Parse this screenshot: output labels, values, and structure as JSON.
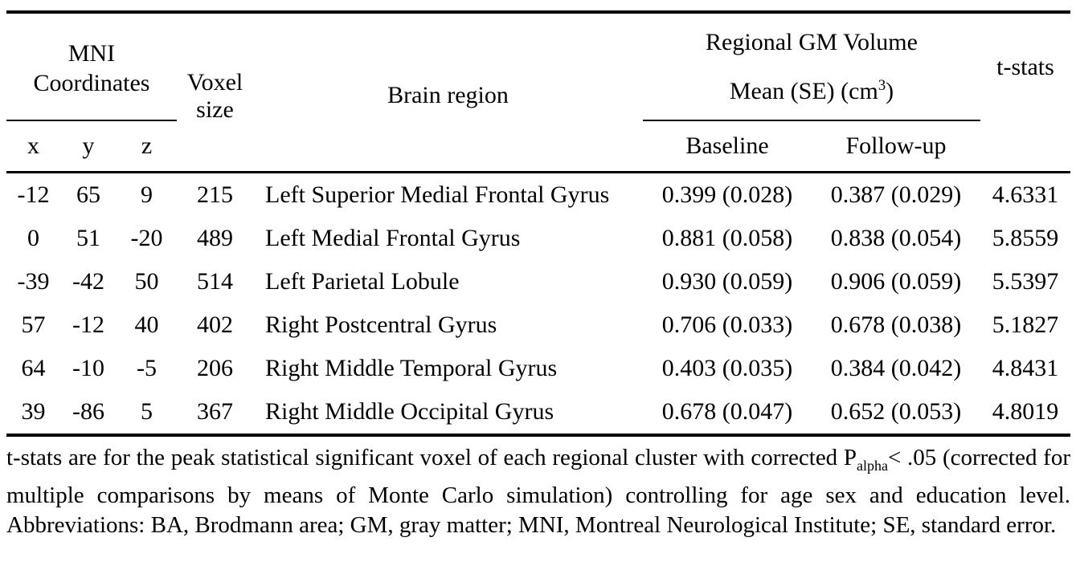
{
  "table": {
    "header": {
      "mni_line1": "MNI",
      "mni_line2": "Coordinates",
      "voxel_line1": "Voxel",
      "voxel_line2": "size",
      "brain_region": "Brain region",
      "gm_title": "Regional GM Volume",
      "gm_mean_prefix": "Mean (SE) (cm",
      "gm_mean_sup": "3",
      "gm_mean_suffix": ")",
      "tstats": "t-stats",
      "sub": {
        "x": "x",
        "y": "y",
        "z": "z",
        "baseline": "Baseline",
        "followup": "Follow-up"
      }
    },
    "rows": [
      {
        "x": "-12",
        "y": "65",
        "z": "9",
        "voxel": "215",
        "region": "Left Superior Medial Frontal Gyrus",
        "baseline": "0.399 (0.028)",
        "followup": "0.387 (0.029)",
        "t": "4.6331"
      },
      {
        "x": "0",
        "y": "51",
        "z": "-20",
        "voxel": "489",
        "region": "Left Medial Frontal Gyrus",
        "baseline": "0.881 (0.058)",
        "followup": "0.838 (0.054)",
        "t": "5.8559"
      },
      {
        "x": "-39",
        "y": "-42",
        "z": "50",
        "voxel": "514",
        "region": "Left Parietal Lobule",
        "baseline": "0.930 (0.059)",
        "followup": "0.906 (0.059)",
        "t": "5.5397"
      },
      {
        "x": "57",
        "y": "-12",
        "z": "40",
        "voxel": "402",
        "region": "Right Postcentral Gyrus",
        "baseline": "0.706 (0.033)",
        "followup": "0.678 (0.038)",
        "t": "5.1827"
      },
      {
        "x": "64",
        "y": "-10",
        "z": "-5",
        "voxel": "206",
        "region": "Right Middle Temporal Gyrus",
        "baseline": "0.403 (0.035)",
        "followup": "0.384 (0.042)",
        "t": "4.8431"
      },
      {
        "x": "39",
        "y": "-86",
        "z": "5",
        "voxel": "367",
        "region": "Right Middle Occipital Gyrus",
        "baseline": "0.678 (0.047)",
        "followup": "0.652 (0.053)",
        "t": "4.8019"
      }
    ]
  },
  "footnote": {
    "part1": "t-stats are for the peak statistical significant voxel of each regional cluster with corrected P",
    "subscript": "alpha",
    "part2": "< .05 (corrected for multiple comparisons by means of Monte Carlo simulation) controlling for age sex and education level. Abbreviations: BA, Brodmann area; GM, gray matter; MNI, Montreal Neurological Institute; SE, standard error."
  }
}
